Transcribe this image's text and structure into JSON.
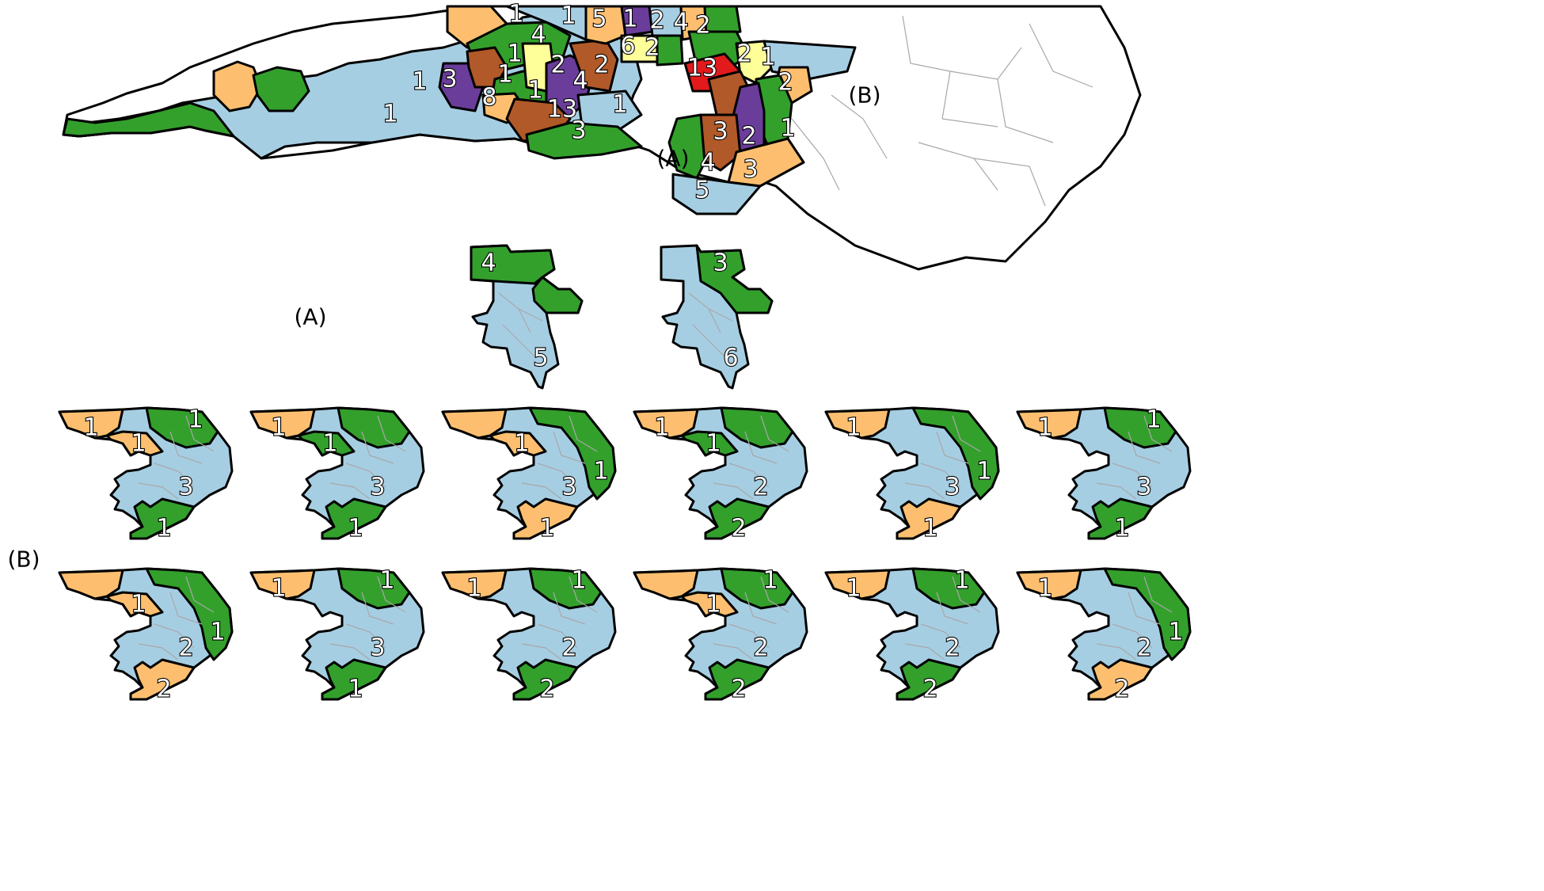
{
  "palette": {
    "light_blue": "#a6cee3",
    "green": "#33a02c",
    "orange": "#fdbf6f",
    "purple": "#6a3d9a",
    "brown": "#b15928",
    "yellow": "#ffff99",
    "red": "#e31a1c",
    "white": "#ffffff",
    "outline": "#000000",
    "county_line": "#a8a8a8"
  },
  "labels": {
    "A_on_map": "(A)",
    "B_on_map": "(B)",
    "A_panel": "(A)",
    "B_panel": "(B)"
  },
  "main_map_clusters": [
    {
      "label": "1",
      "color": "orange"
    },
    {
      "label": "1",
      "color": "light_blue"
    },
    {
      "label": "5",
      "color": "orange"
    },
    {
      "label": "1",
      "color": "purple"
    },
    {
      "label": "2",
      "color": "light_blue"
    },
    {
      "label": "4",
      "color": "orange"
    },
    {
      "label": "2",
      "color": "green"
    },
    {
      "label": "4",
      "color": "green"
    },
    {
      "label": "1",
      "color": "brown"
    },
    {
      "label": "2",
      "color": "yellow"
    },
    {
      "label": "6",
      "color": "yellow"
    },
    {
      "label": "2",
      "color": "green"
    },
    {
      "label": "13",
      "color": "red"
    },
    {
      "label": "2",
      "color": "yellow"
    },
    {
      "label": "1",
      "color": "light_blue"
    },
    {
      "label": "1",
      "color": "orange"
    },
    {
      "label": "3",
      "color": "green"
    },
    {
      "label": "1",
      "color": "purple"
    },
    {
      "label": "2",
      "color": "brown"
    },
    {
      "label": "4",
      "color": "purple"
    },
    {
      "label": "2",
      "color": "orange"
    },
    {
      "label": "8",
      "color": "light_blue"
    },
    {
      "label": "1",
      "color": "orange"
    },
    {
      "label": "13",
      "color": "brown"
    },
    {
      "label": "1",
      "color": "light_blue"
    },
    {
      "label": "1",
      "color": "green"
    },
    {
      "label": "3",
      "color": "green"
    },
    {
      "label": "3",
      "color": "brown"
    },
    {
      "label": "2",
      "color": "purple"
    },
    {
      "label": "1",
      "color": "green"
    },
    {
      "label": "4",
      "color": "green"
    },
    {
      "label": "3",
      "color": "orange"
    },
    {
      "label": "5",
      "color": "light_blue"
    }
  ],
  "panel_A": [
    {
      "top": "4",
      "bottom": "5"
    },
    {
      "top": "3",
      "bottom": "6"
    }
  ],
  "panel_B": [
    {
      "nw": "1",
      "w": "1",
      "ne": "1",
      "mid": "3",
      "south": "1",
      "nw_c": "orange",
      "w_c": "orange",
      "ne_c": "green",
      "coast_c": "light_blue",
      "south_c": "green",
      "show_w": true,
      "show_coast": false,
      "ne_on_coast": false
    },
    {
      "nw": "1",
      "w": "1",
      "ne": "",
      "mid": "3",
      "south": "1",
      "nw_c": "orange",
      "w_c": "green",
      "ne_c": "green",
      "coast_c": "light_blue",
      "south_c": "green",
      "show_w": true,
      "show_coast": false,
      "ne_on_coast": false
    },
    {
      "nw": "",
      "w": "1",
      "ne": "1",
      "mid": "3",
      "south": "1",
      "nw_c": "orange",
      "w_c": "orange",
      "ne_c": "green",
      "coast_c": "green",
      "south_c": "orange",
      "show_w": true,
      "show_coast": true,
      "ne_on_coast": true
    },
    {
      "nw": "1",
      "w": "1",
      "ne": "",
      "mid": "2",
      "south": "2",
      "nw_c": "orange",
      "w_c": "green",
      "ne_c": "green",
      "coast_c": "light_blue",
      "south_c": "green",
      "show_w": true,
      "show_coast": false,
      "ne_on_coast": false
    },
    {
      "nw": "1",
      "w": "",
      "ne": "1",
      "mid": "3",
      "south": "1",
      "nw_c": "orange",
      "w_c": "light_blue",
      "ne_c": "green",
      "coast_c": "green",
      "south_c": "orange",
      "show_w": false,
      "show_coast": true,
      "ne_on_coast": true
    },
    {
      "nw": "1",
      "w": "",
      "ne": "1",
      "mid": "3",
      "south": "1",
      "nw_c": "orange",
      "w_c": "light_blue",
      "ne_c": "green",
      "coast_c": "light_blue",
      "south_c": "green",
      "show_w": false,
      "show_coast": false,
      "ne_on_coast": false
    },
    {
      "nw": "",
      "w": "1",
      "ne": "1",
      "mid": "2",
      "south": "2",
      "nw_c": "orange",
      "w_c": "orange",
      "ne_c": "green",
      "coast_c": "green",
      "south_c": "orange",
      "show_w": true,
      "show_coast": true,
      "ne_on_coast": true
    },
    {
      "nw": "1",
      "w": "",
      "ne": "1",
      "mid": "3",
      "south": "1",
      "nw_c": "orange",
      "w_c": "light_blue",
      "ne_c": "green",
      "coast_c": "light_blue",
      "south_c": "green",
      "show_w": false,
      "show_coast": false,
      "ne_on_coast": false
    },
    {
      "nw": "1",
      "w": "",
      "ne": "1",
      "mid": "2",
      "south": "2",
      "nw_c": "orange",
      "w_c": "light_blue",
      "ne_c": "green",
      "coast_c": "light_blue",
      "south_c": "green",
      "show_w": false,
      "show_coast": false,
      "ne_on_coast": false
    },
    {
      "nw": "",
      "w": "1",
      "ne": "1",
      "mid": "2",
      "south": "2",
      "nw_c": "orange",
      "w_c": "orange",
      "ne_c": "green",
      "coast_c": "light_blue",
      "south_c": "green",
      "show_w": true,
      "show_coast": false,
      "ne_on_coast": false
    },
    {
      "nw": "1",
      "w": "",
      "ne": "1",
      "mid": "2",
      "south": "2",
      "nw_c": "orange",
      "w_c": "light_blue",
      "ne_c": "green",
      "coast_c": "light_blue",
      "south_c": "green",
      "show_w": false,
      "show_coast": false,
      "ne_on_coast": false
    },
    {
      "nw": "1",
      "w": "",
      "ne": "1",
      "mid": "2",
      "south": "2",
      "nw_c": "orange",
      "w_c": "light_blue",
      "ne_c": "green",
      "coast_c": "green",
      "south_c": "orange",
      "show_w": false,
      "show_coast": true,
      "ne_on_coast": true
    }
  ]
}
